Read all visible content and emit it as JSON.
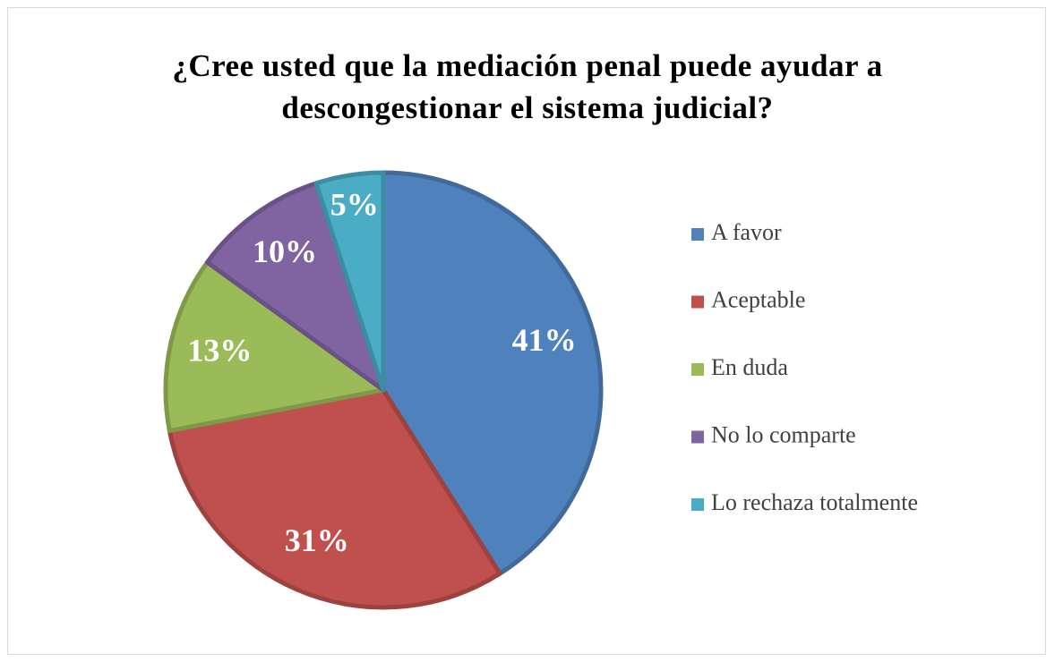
{
  "chart_data": {
    "type": "pie",
    "title": "¿Cree usted que la mediación penal puede ayudar a descongestionar el sistema judicial?",
    "categories": [
      "A favor",
      "Aceptable",
      "En duda",
      "No lo comparte",
      "Lo rechaza totalmente"
    ],
    "values": [
      41,
      31,
      13,
      10,
      5
    ],
    "value_labels": [
      "41%",
      "31%",
      "13%",
      "10%",
      "5%"
    ],
    "colors": [
      "#4f81bd",
      "#c0504d",
      "#9bbb59",
      "#8064a2",
      "#4bacc6"
    ],
    "legend": "right"
  }
}
